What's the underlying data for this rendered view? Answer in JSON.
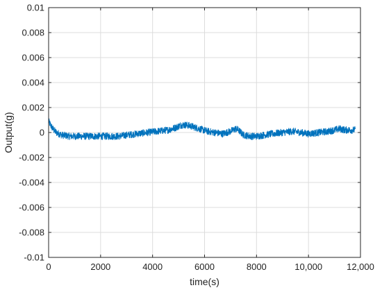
{
  "chart_data": {
    "type": "line",
    "xlabel": "time(s)",
    "ylabel": "Output(g)",
    "xlim": [
      0,
      12000
    ],
    "ylim": [
      -0.01,
      0.01
    ],
    "grid": true,
    "xticks": [
      0,
      2000,
      4000,
      6000,
      8000,
      10000,
      12000
    ],
    "xtick_labels": [
      "0",
      "2000",
      "4000",
      "6000",
      "8000",
      "10,000",
      "12,000"
    ],
    "yticks": [
      -0.01,
      -0.008,
      -0.006,
      -0.004,
      -0.002,
      0,
      0.002,
      0.004,
      0.006,
      0.008,
      0.01
    ],
    "ytick_labels": [
      "-0.01",
      "-0.008",
      "-0.006",
      "-0.004",
      "-0.002",
      "0",
      "0.002",
      "0.004",
      "0.006",
      "0.008",
      "0.01"
    ],
    "line_color": "#0072BD",
    "noise_band": 0.00028,
    "series": [
      {
        "x": [
          0,
          100,
          200,
          300,
          500,
          800,
          1200,
          1600,
          2000,
          2400,
          2700,
          3000,
          3400,
          3800,
          4200,
          4600,
          4900,
          5100,
          5300,
          5500,
          5800,
          6100,
          6400,
          6700,
          7000,
          7200,
          7300,
          7500,
          7800,
          8000,
          8300,
          8600,
          9000,
          9400,
          9700,
          10000,
          10400,
          10800,
          11000,
          11200,
          11400,
          11600,
          11800
        ],
        "y": [
          0.0009,
          0.0005,
          0.0002,
          0.0,
          -0.0002,
          -0.0003,
          -0.0003,
          -0.0003,
          -0.0003,
          -0.0003,
          -0.0003,
          -0.0002,
          -0.0001,
          0.0,
          0.0001,
          0.0002,
          0.0004,
          0.0006,
          0.0006,
          0.0005,
          0.0003,
          0.0001,
          0.0,
          -0.0001,
          0.0001,
          0.0003,
          0.0002,
          -0.0002,
          -0.0003,
          -0.0003,
          -0.0002,
          -0.0001,
          0.0,
          0.0001,
          0.0,
          -0.0001,
          0.0,
          0.0001,
          0.0002,
          0.0003,
          0.0002,
          0.0002,
          0.0002
        ]
      }
    ]
  }
}
